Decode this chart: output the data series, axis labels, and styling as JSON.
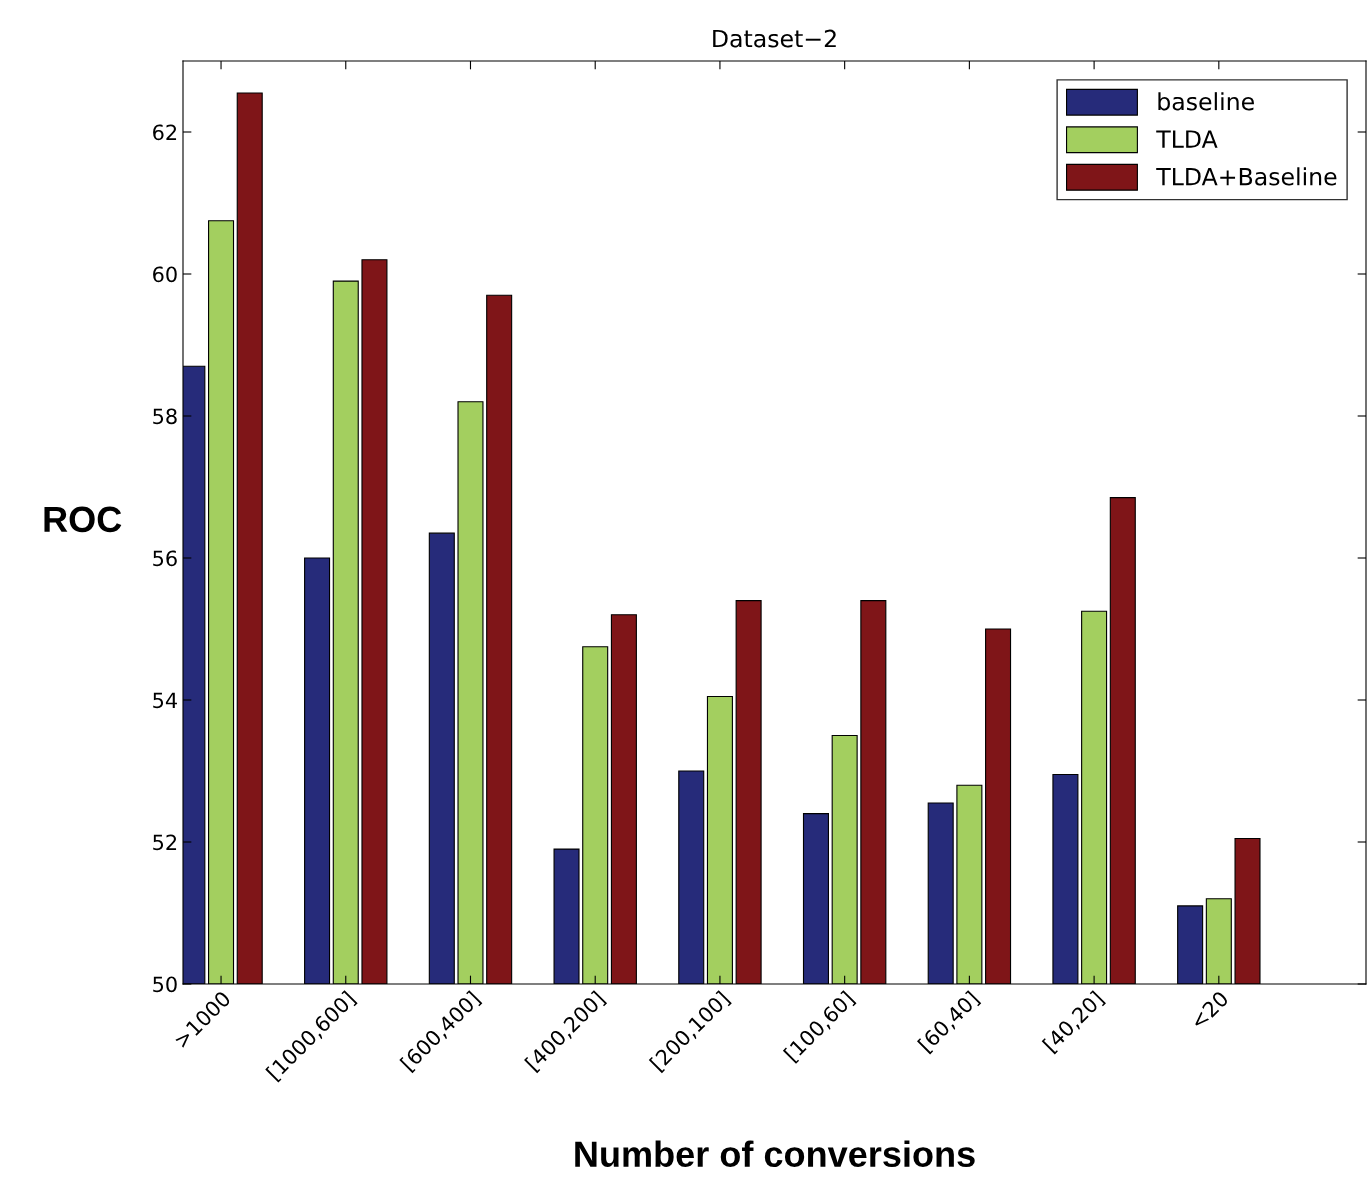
{
  "chart_data": {
    "type": "bar",
    "title": "Dataset−2",
    "xlabel": "Number of conversions",
    "ylabel": "ROC",
    "categories": [
      ">1000",
      "[1000,600]",
      "[600,400]",
      "[400,200]",
      "[200,100]",
      "[100,60]",
      "[60,40]",
      "[40,20]",
      "<20"
    ],
    "series": [
      {
        "name": "baseline",
        "color": "#262b7a",
        "values": [
          58.7,
          56.0,
          56.35,
          51.9,
          53.0,
          52.4,
          52.55,
          52.95,
          51.1
        ]
      },
      {
        "name": "TLDA",
        "color": "#a3cf5f",
        "values": [
          60.75,
          59.9,
          58.2,
          54.75,
          54.05,
          53.5,
          52.8,
          55.25,
          51.2
        ]
      },
      {
        "name": "TLDA+Baseline",
        "color": "#7f1518",
        "values": [
          62.55,
          60.2,
          59.7,
          55.2,
          55.4,
          55.4,
          55.0,
          56.85,
          52.05
        ]
      }
    ],
    "ylim": [
      50,
      63
    ],
    "yticks": [
      50,
      52,
      54,
      56,
      58,
      60,
      62
    ],
    "grid": false,
    "legend": "top right"
  }
}
